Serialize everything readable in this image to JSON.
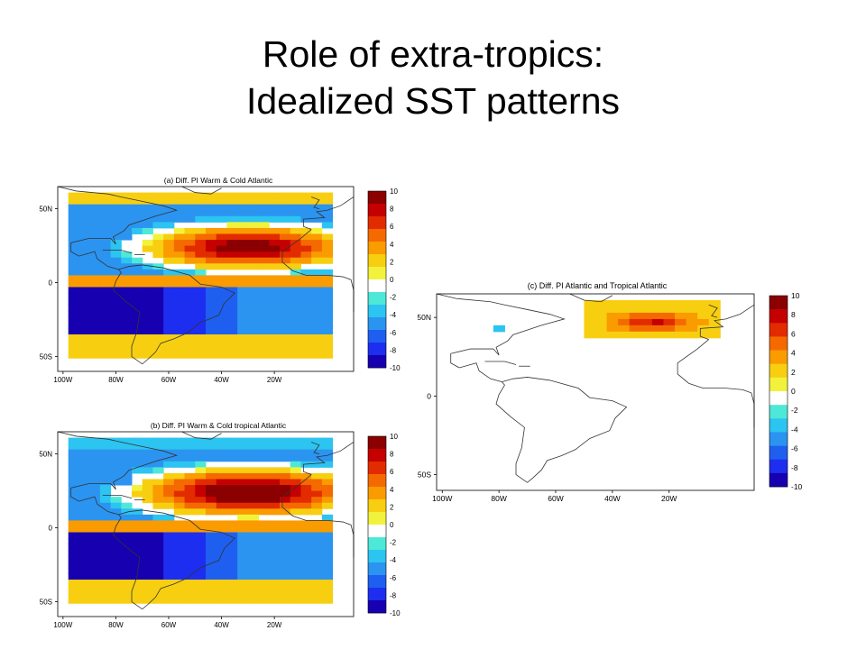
{
  "slide": {
    "title_line1": "Role of extra-tropics:",
    "title_line2": "Idealized SST patterns"
  },
  "colorbar": {
    "tick_labels": [
      "10",
      "8",
      "6",
      "4",
      "2",
      "0",
      "-2",
      "-4",
      "-6",
      "-8",
      "-10"
    ],
    "colors": [
      "#8b0000",
      "#c40000",
      "#e32b00",
      "#f46a00",
      "#fa9b00",
      "#f7cf10",
      "#f2f23c",
      "#ffffff",
      "#4ee8d8",
      "#2cc4f0",
      "#2b94f0",
      "#1f5ff0",
      "#1d2ef0",
      "#1600b0"
    ]
  },
  "axes": {
    "lon_labels": [
      "100W",
      "80W",
      "60W",
      "40W",
      "20W"
    ],
    "lat_labels": [
      "50N",
      "0",
      "50S"
    ]
  },
  "panels": [
    {
      "id": "a",
      "title": "(a) Diff. PI Warm & Cold Atlantic"
    },
    {
      "id": "b",
      "title": "(b) Diff. PI Warm & Cold tropical Atlantic"
    },
    {
      "id": "c",
      "title": "(c) Diff. PI Atlantic and Tropical Atlantic"
    }
  ]
}
